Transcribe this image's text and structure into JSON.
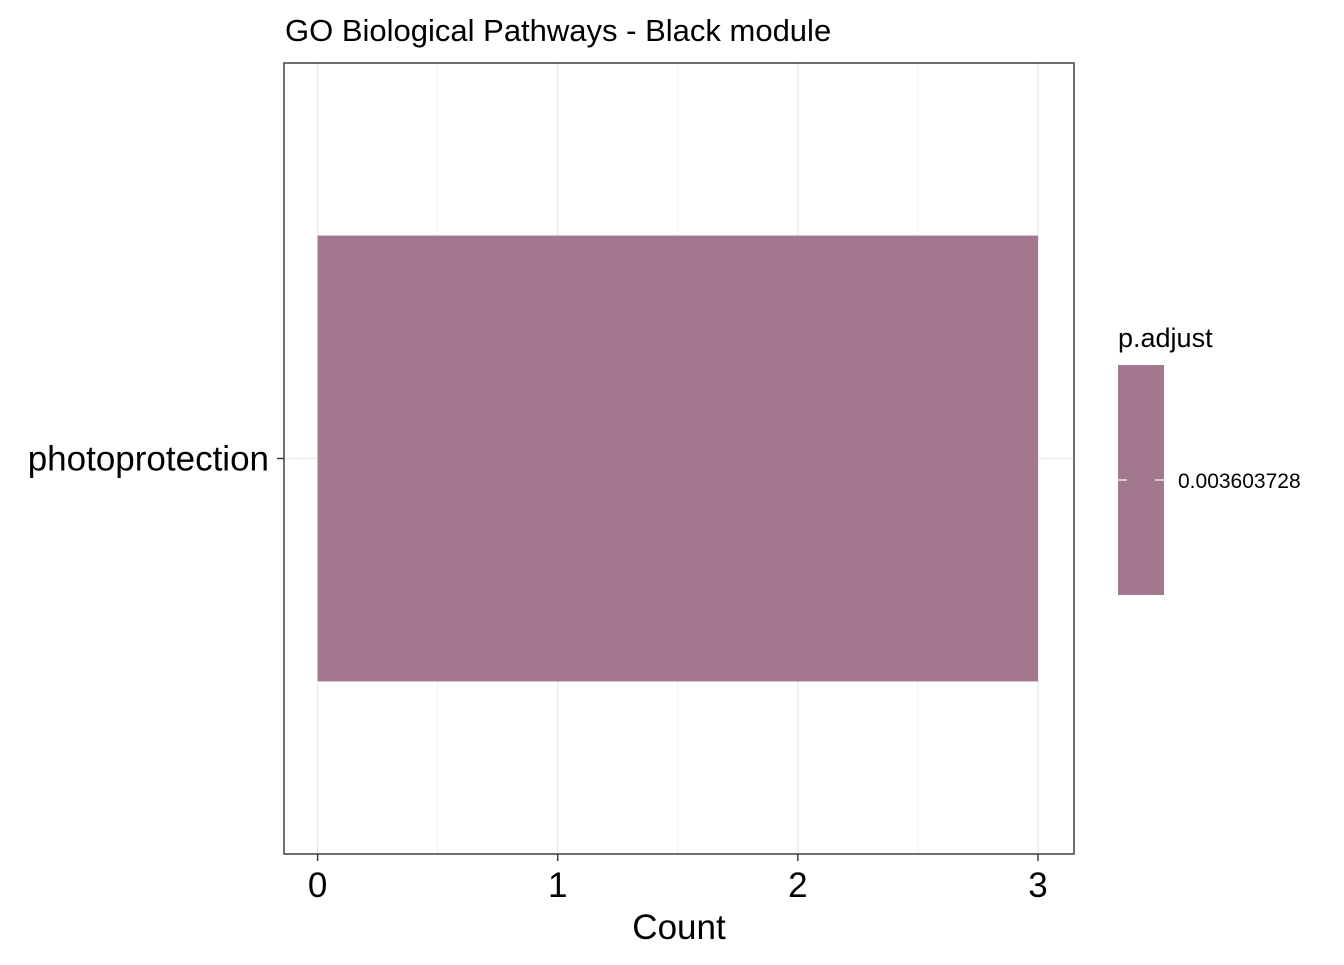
{
  "chart_data": {
    "type": "bar",
    "orientation": "horizontal",
    "title": "GO Biological Pathways - Black module",
    "xlabel": "Count",
    "ylabel": "",
    "categories": [
      "photoprotection"
    ],
    "values": [
      3
    ],
    "xlim": [
      -0.14,
      3.15
    ],
    "xticks": [
      0,
      1,
      2,
      3
    ],
    "xtick_labels": [
      "0",
      "1",
      "2",
      "3"
    ],
    "grid": true,
    "bar_color": "#a3778d",
    "legend": {
      "title": "p.adjust",
      "placement": "right",
      "labels": [
        "0.003603728"
      ],
      "color": "#a3778d"
    }
  }
}
